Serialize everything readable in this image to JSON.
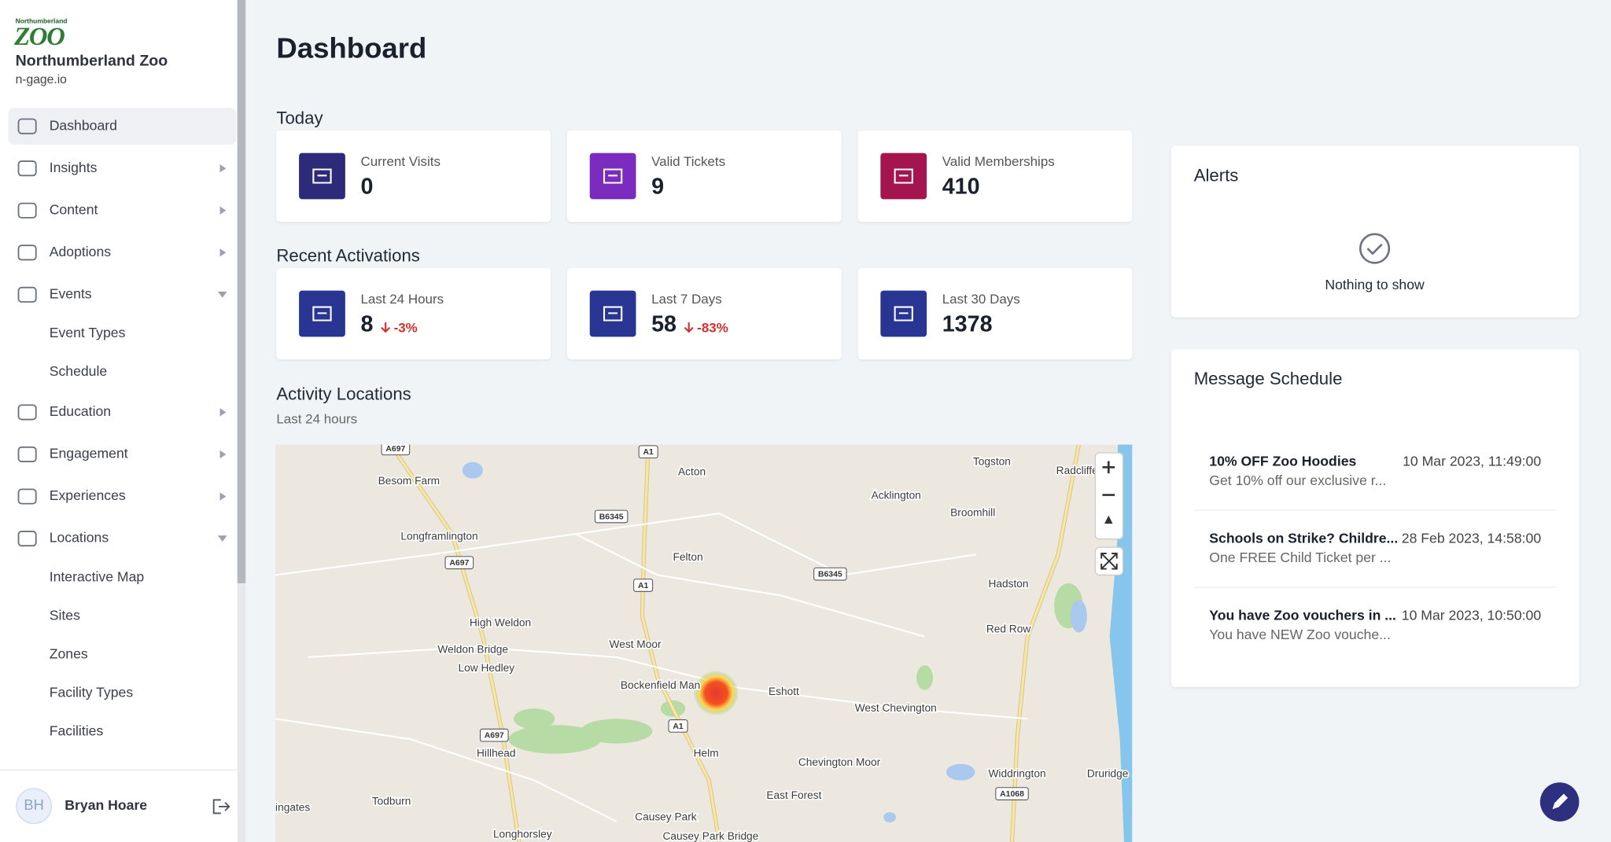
{
  "sidebar": {
    "logo": {
      "small": "Northumberland",
      "big": "ZOO"
    },
    "org_name": "Northumberland Zoo",
    "domain": "n-gage.io",
    "nav": [
      {
        "label": "Dashboard"
      },
      {
        "label": "Insights"
      },
      {
        "label": "Content"
      },
      {
        "label": "Adoptions"
      },
      {
        "label": "Events",
        "children": [
          "Event Types",
          "Schedule"
        ]
      },
      {
        "label": "Education"
      },
      {
        "label": "Engagement"
      },
      {
        "label": "Experiences"
      },
      {
        "label": "Locations",
        "children": [
          "Interactive Map",
          "Sites",
          "Zones",
          "Facility Types",
          "Facilities"
        ]
      }
    ],
    "user": {
      "initials": "BH",
      "name": "Bryan Hoare"
    }
  },
  "page_title": "Dashboard",
  "today": {
    "heading": "Today",
    "cards": [
      {
        "label": "Current Visits",
        "value": 0
      },
      {
        "label": "Valid Tickets",
        "value": 9
      },
      {
        "label": "Valid Memberships",
        "value": 410
      }
    ]
  },
  "recent": {
    "heading": "Recent Activations",
    "cards": [
      {
        "label": "Last 24 Hours",
        "value": 8,
        "change": "-3%"
      },
      {
        "label": "Last 7 Days",
        "value": 58,
        "change": "-83%"
      },
      {
        "label": "Last 30 Days",
        "value": 1378
      }
    ]
  },
  "activity": {
    "heading": "Activity Locations",
    "subtitle": "Last 24 hours",
    "road_labels": [
      "A697",
      "A1",
      "B6345",
      "A697",
      "A1",
      "B6345",
      "A697",
      "A1",
      "A1068"
    ],
    "place_labels": [
      "Acton",
      "Togston",
      "Radcliffe",
      "Besom Farm",
      "Acklington",
      "Broomhill",
      "Longframlington",
      "Felton",
      "Hadston",
      "High Weldon",
      "Red Row",
      "West Moor",
      "Weldon Bridge",
      "Low Hedley",
      "Bockenfield Man",
      "Eshott",
      "West Chevington",
      "Hillhead",
      "Helm",
      "Chevington Moor",
      "Widdrington",
      "Druridge",
      "East Forest",
      "ingates",
      "Todburn",
      "Causey Park",
      "Longhorsley",
      "Causey Park Bridge"
    ]
  },
  "alerts": {
    "title": "Alerts",
    "empty": "Nothing to show"
  },
  "messages": {
    "title": "Message Schedule",
    "items": [
      {
        "title": "10% OFF Zoo Hoodies",
        "body": "Get 10% off our exclusive r...",
        "date": "10 Mar 2023, 11:49:00"
      },
      {
        "title": "Schools on Strike? Childre...",
        "body": "One FREE Child Ticket per ...",
        "date": "28 Feb 2023, 14:58:00"
      },
      {
        "title": "You have Zoo vouchers in ...",
        "body": "You have NEW Zoo vouche...",
        "date": "10 Mar 2023, 10:50:00"
      }
    ]
  }
}
